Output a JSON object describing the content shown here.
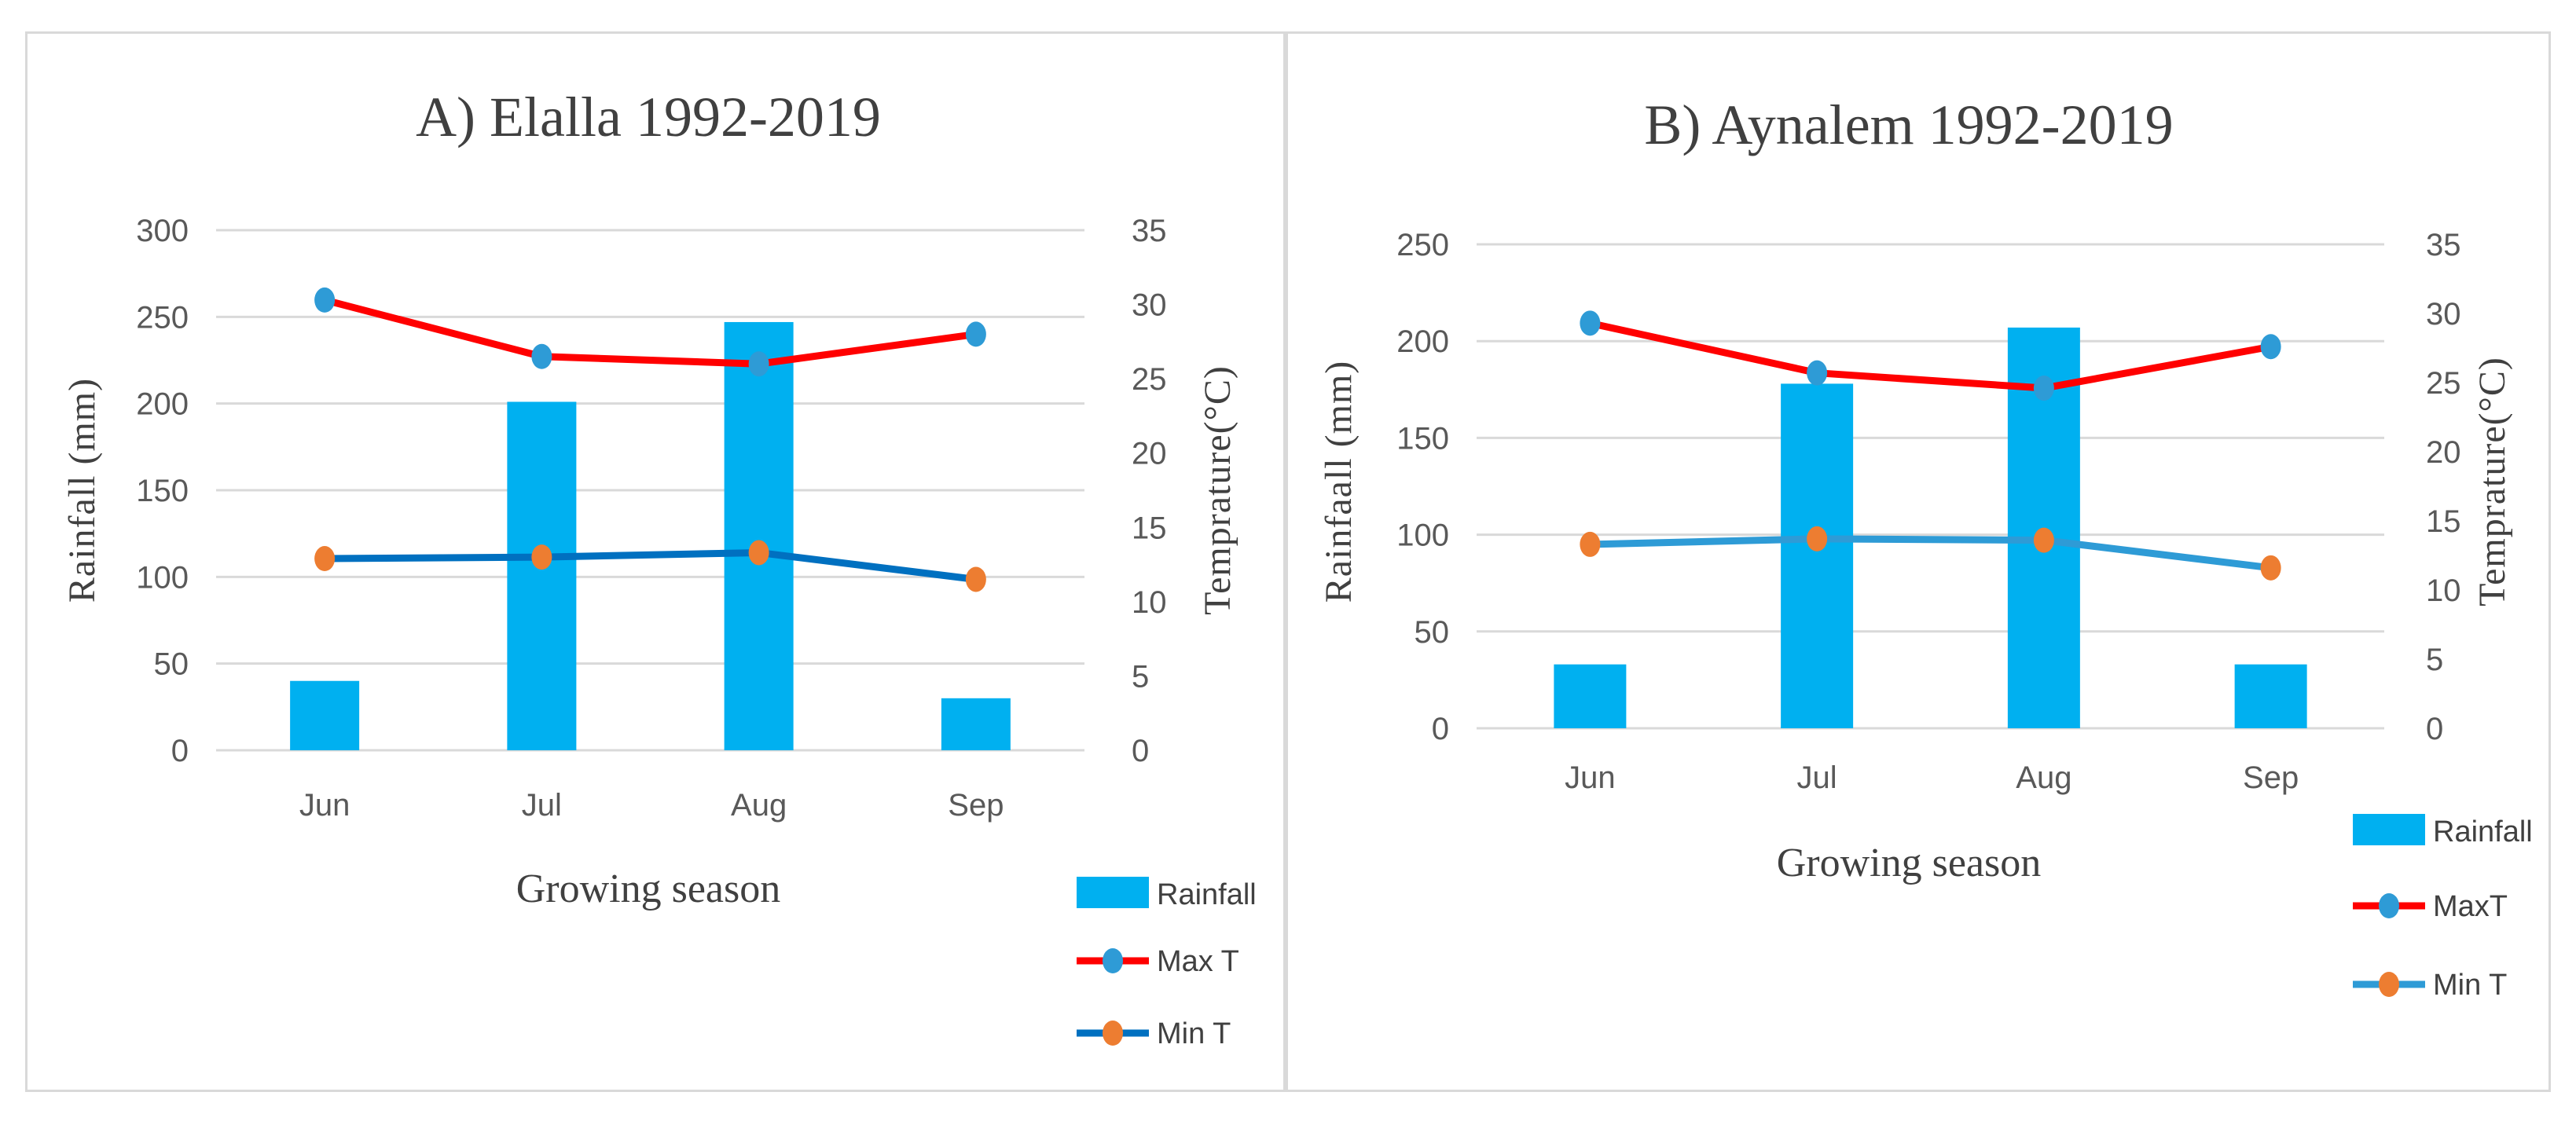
{
  "colors": {
    "rainfall": "#00b0f0",
    "max_line": "#ff0000",
    "max_marker": "#2e9bd6",
    "min_line_a": "#0070c0",
    "min_line_b": "#2e9bd6",
    "min_marker": "#ed7d31",
    "grid": "#d9d9d9",
    "text": "#595959"
  },
  "chart_data": [
    {
      "type": "bar",
      "title": "A) Elalla 1992-2019",
      "categories": [
        "Jun",
        "Jul",
        "Aug",
        "Sep"
      ],
      "xlabel": "Growing season",
      "ylabel": "Rainfall (mm)",
      "y2label": "Temprature(°C)",
      "ylim": [
        0,
        300
      ],
      "yticks": [
        0,
        50,
        100,
        150,
        200,
        250,
        300
      ],
      "y2lim": [
        0,
        35
      ],
      "y2ticks": [
        0,
        5,
        10,
        15,
        20,
        25,
        30,
        35
      ],
      "grid": true,
      "legend_position": "bottom-right",
      "series": [
        {
          "name": "Rainfall",
          "kind": "bar",
          "axis": "left",
          "values": [
            40,
            201,
            247,
            30
          ]
        },
        {
          "name": "Max T",
          "kind": "line",
          "axis": "right",
          "values": [
            30.3,
            26.5,
            26.0,
            28.0
          ]
        },
        {
          "name": "Min T",
          "kind": "line",
          "axis": "right",
          "values": [
            12.9,
            13.0,
            13.3,
            11.5
          ]
        }
      ]
    },
    {
      "type": "bar",
      "title": "B) Aynalem 1992-2019",
      "categories": [
        "Jun",
        "Jul",
        "Aug",
        "Sep"
      ],
      "xlabel": "Growing season",
      "ylabel": "Rainfaall (mm)",
      "y2label": "Temprature(°C)",
      "ylim": [
        0,
        250
      ],
      "yticks": [
        0,
        50,
        100,
        150,
        200,
        250
      ],
      "y2lim": [
        0,
        35
      ],
      "y2ticks": [
        0,
        5,
        10,
        15,
        20,
        25,
        30,
        35
      ],
      "grid": true,
      "legend_position": "bottom-right",
      "series": [
        {
          "name": "Rainfall",
          "kind": "bar",
          "axis": "left",
          "values": [
            33,
            178,
            207,
            33
          ]
        },
        {
          "name": "MaxT",
          "kind": "line",
          "axis": "right",
          "values": [
            29.3,
            25.7,
            24.6,
            27.6
          ]
        },
        {
          "name": "Min T",
          "kind": "line",
          "axis": "right",
          "values": [
            13.3,
            13.7,
            13.6,
            11.6
          ]
        }
      ]
    }
  ]
}
